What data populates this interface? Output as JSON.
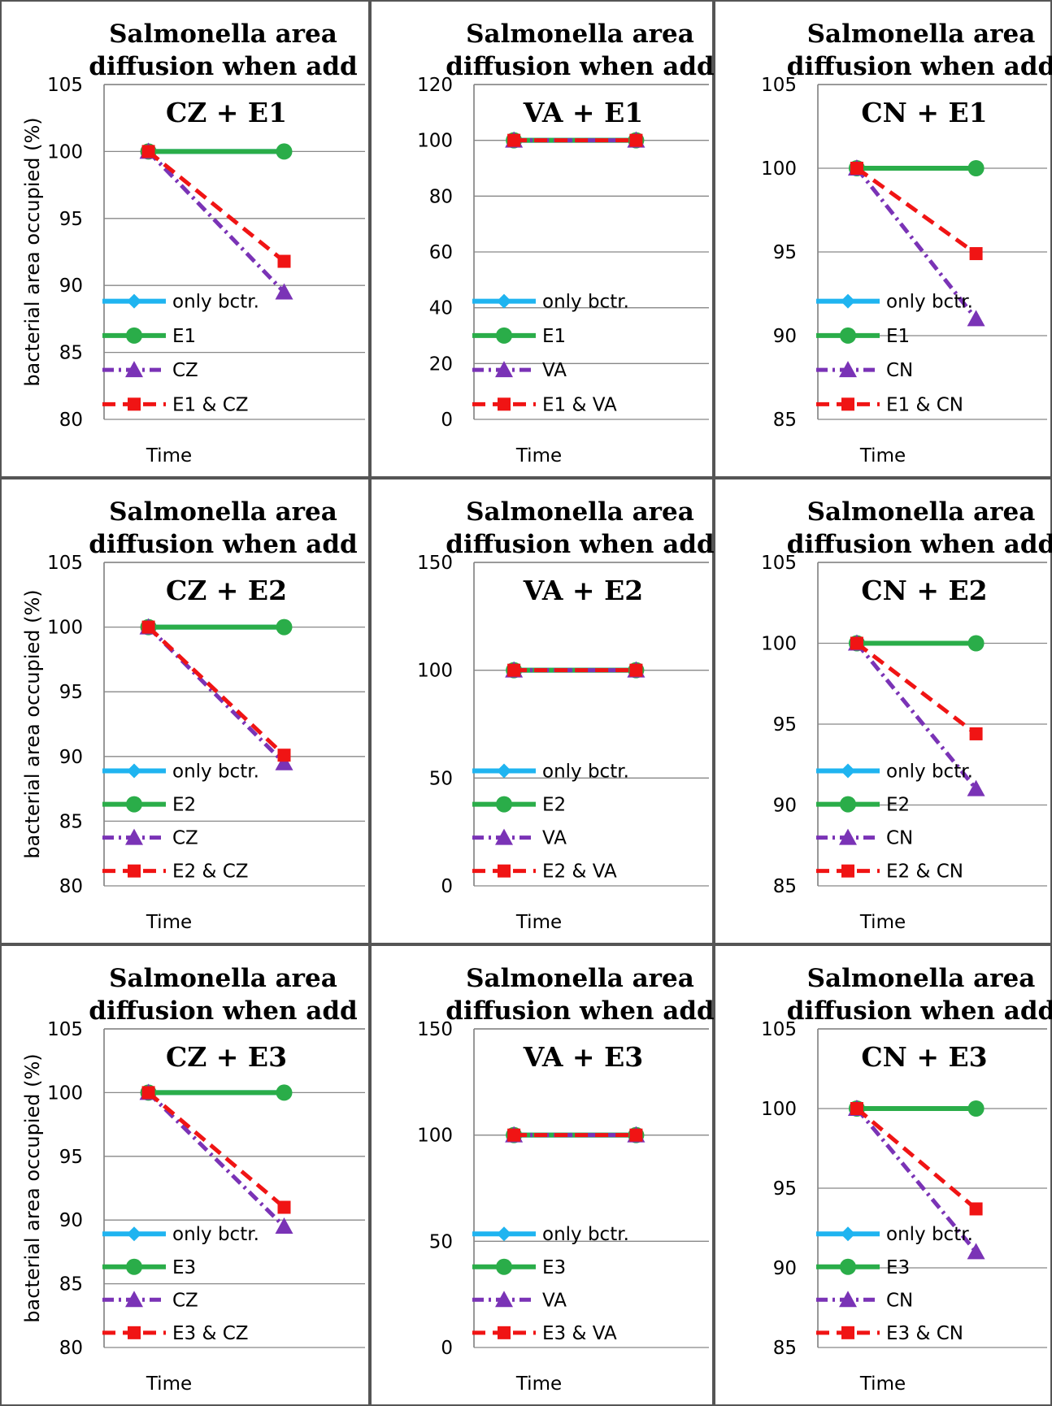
{
  "chart_data": [
    {
      "type": "line",
      "title": "Salmonella area diffusion when add",
      "subtitle": "CZ + E1",
      "xlabel": "Time",
      "ylabel": "bacterial area occupied (%)",
      "ylim": [
        80,
        105
      ],
      "yticks": [
        80,
        85,
        90,
        95,
        100,
        105
      ],
      "x": [
        1,
        2
      ],
      "series": [
        {
          "name": "only bctr.",
          "values": [
            100,
            100
          ]
        },
        {
          "name": "E1",
          "values": [
            100,
            100
          ]
        },
        {
          "name": "CZ",
          "values": [
            100,
            89.5
          ]
        },
        {
          "name": "E1 & CZ",
          "values": [
            100,
            91.8
          ]
        }
      ]
    },
    {
      "type": "line",
      "title": "Salmonella area diffusion when add",
      "subtitle": "VA + E1",
      "xlabel": "Time",
      "ylabel": "",
      "ylim": [
        0,
        120
      ],
      "yticks": [
        0,
        20,
        40,
        60,
        80,
        100,
        120
      ],
      "x": [
        1,
        2
      ],
      "series": [
        {
          "name": "only bctr.",
          "values": [
            100,
            100
          ]
        },
        {
          "name": "E1",
          "values": [
            100,
            100
          ]
        },
        {
          "name": "VA",
          "values": [
            100,
            100
          ]
        },
        {
          "name": "E1 & VA",
          "values": [
            100,
            100
          ]
        }
      ]
    },
    {
      "type": "line",
      "title": "Salmonella area diffusion when add",
      "subtitle": "CN + E1",
      "xlabel": "Time",
      "ylabel": "",
      "ylim": [
        85,
        105
      ],
      "yticks": [
        85,
        90,
        95,
        100,
        105
      ],
      "x": [
        1,
        2
      ],
      "series": [
        {
          "name": "only bctr.",
          "values": [
            100,
            100
          ]
        },
        {
          "name": "E1",
          "values": [
            100,
            100
          ]
        },
        {
          "name": "CN",
          "values": [
            100,
            91
          ]
        },
        {
          "name": "E1 & CN",
          "values": [
            100,
            94.9
          ]
        }
      ]
    },
    {
      "type": "line",
      "title": "Salmonella area diffusion when add",
      "subtitle": "CZ + E2",
      "xlabel": "Time",
      "ylabel": "bacterial area occupied (%)",
      "ylim": [
        80,
        105
      ],
      "yticks": [
        80,
        85,
        90,
        95,
        100,
        105
      ],
      "x": [
        1,
        2
      ],
      "series": [
        {
          "name": "only bctr.",
          "values": [
            100,
            100
          ]
        },
        {
          "name": "E2",
          "values": [
            100,
            100
          ]
        },
        {
          "name": "CZ",
          "values": [
            100,
            89.5
          ]
        },
        {
          "name": "E2 & CZ",
          "values": [
            100,
            90.1
          ]
        }
      ]
    },
    {
      "type": "line",
      "title": "Salmonella area diffusion when add",
      "subtitle": "VA + E2",
      "xlabel": "Time",
      "ylabel": "",
      "ylim": [
        0,
        150
      ],
      "yticks": [
        0,
        50,
        100,
        150
      ],
      "x": [
        1,
        2
      ],
      "series": [
        {
          "name": "only bctr.",
          "values": [
            100,
            100
          ]
        },
        {
          "name": "E2",
          "values": [
            100,
            100
          ]
        },
        {
          "name": "VA",
          "values": [
            100,
            100
          ]
        },
        {
          "name": "E2 & VA",
          "values": [
            100,
            100
          ]
        }
      ]
    },
    {
      "type": "line",
      "title": "Salmonella area diffusion when add",
      "subtitle": "CN + E2",
      "xlabel": "Time",
      "ylabel": "",
      "ylim": [
        85,
        105
      ],
      "yticks": [
        85,
        90,
        95,
        100,
        105
      ],
      "x": [
        1,
        2
      ],
      "series": [
        {
          "name": "only bctr.",
          "values": [
            100,
            100
          ]
        },
        {
          "name": "E2",
          "values": [
            100,
            100
          ]
        },
        {
          "name": "CN",
          "values": [
            100,
            91
          ]
        },
        {
          "name": "E2 & CN",
          "values": [
            100,
            94.4
          ]
        }
      ]
    },
    {
      "type": "line",
      "title": "Salmonella area diffusion when add",
      "subtitle": "CZ + E3",
      "xlabel": "Time",
      "ylabel": "bacterial area occupied (%)",
      "ylim": [
        80,
        105
      ],
      "yticks": [
        80,
        85,
        90,
        95,
        100,
        105
      ],
      "x": [
        1,
        2
      ],
      "series": [
        {
          "name": "only bctr.",
          "values": [
            100,
            100
          ]
        },
        {
          "name": "E3",
          "values": [
            100,
            100
          ]
        },
        {
          "name": "CZ",
          "values": [
            100,
            89.5
          ]
        },
        {
          "name": "E3 & CZ",
          "values": [
            100,
            91
          ]
        }
      ]
    },
    {
      "type": "line",
      "title": "Salmonella area diffusion when add",
      "subtitle": "VA + E3",
      "xlabel": "Time",
      "ylabel": "",
      "ylim": [
        0,
        150
      ],
      "yticks": [
        0,
        50,
        100,
        150
      ],
      "x": [
        1,
        2
      ],
      "series": [
        {
          "name": "only bctr.",
          "values": [
            100,
            100
          ]
        },
        {
          "name": "E3",
          "values": [
            100,
            100
          ]
        },
        {
          "name": "VA",
          "values": [
            100,
            100
          ]
        },
        {
          "name": "E3 & VA",
          "values": [
            100,
            100
          ]
        }
      ]
    },
    {
      "type": "line",
      "title": "Salmonella area diffusion when add",
      "subtitle": "CN + E3",
      "xlabel": "Time",
      "ylabel": "",
      "ylim": [
        85,
        105
      ],
      "yticks": [
        85,
        90,
        95,
        100,
        105
      ],
      "x": [
        1,
        2
      ],
      "series": [
        {
          "name": "only bctr.",
          "values": [
            100,
            100
          ]
        },
        {
          "name": "E3",
          "values": [
            100,
            100
          ]
        },
        {
          "name": "CN",
          "values": [
            100,
            91
          ]
        },
        {
          "name": "E3 & CN",
          "values": [
            100,
            93.7
          ]
        }
      ]
    }
  ],
  "style": {
    "colors": [
      "#1fb4f0",
      "#2aad49",
      "#7a33b6",
      "#f01414"
    ],
    "gridline": "#888888",
    "frame": "#555555"
  }
}
